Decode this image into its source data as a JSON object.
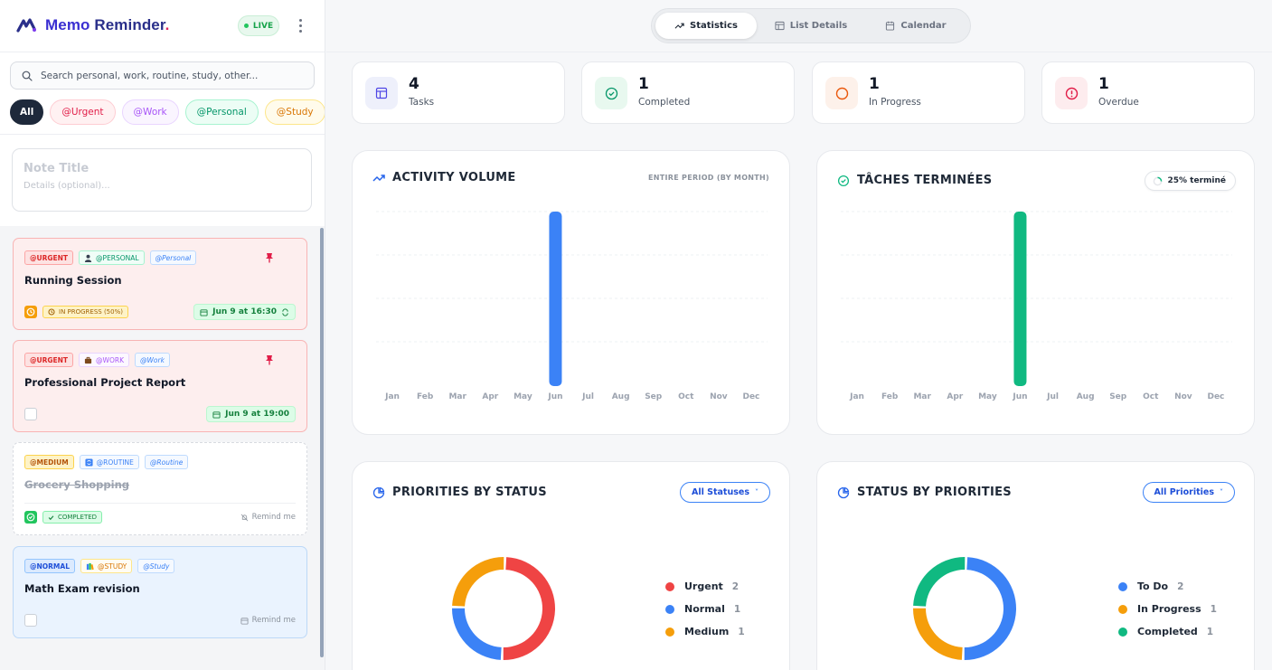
{
  "app": {
    "name_part1": "Memo",
    "name_part2": "Reminder",
    "dot": ".",
    "live": "LIVE"
  },
  "colors": {
    "brand": "#2a2f8a",
    "blue": "#3b82f6",
    "green": "#10b981",
    "red": "#ef4444",
    "orange": "#f59e0b"
  },
  "search": {
    "placeholder": "Search personal, work, routine, study, other..."
  },
  "filters": [
    "All",
    "@Urgent",
    "@Work",
    "@Personal",
    "@Study"
  ],
  "note_form": {
    "title_placeholder": "Note Title",
    "details_placeholder": "Details (optional)..."
  },
  "notes": [
    {
      "priority": "@URGENT",
      "category_icon": "person-icon",
      "category": "@PERSONAL",
      "context": "@Personal",
      "title": "Running Session",
      "pinned": true,
      "status": "IN PROGRESS (50%)",
      "date": "Jun 9 at 16:30",
      "repeat": true
    },
    {
      "priority": "@URGENT",
      "category_icon": "briefcase-icon",
      "category": "@WORK",
      "context": "@Work",
      "title": "Professional Project Report",
      "pinned": true,
      "date": "Jun 9 at 19:00"
    },
    {
      "priority": "@MEDIUM",
      "category_icon": "refresh-icon",
      "category": "@ROUTINE",
      "context": "@Routine",
      "title": "Grocery Shopping",
      "status": "COMPLETED",
      "remind": "Remind me"
    },
    {
      "priority": "@NORMAL",
      "category_icon": "books-icon",
      "category": "@STUDY",
      "context": "@Study",
      "title": "Math Exam revision",
      "remind": "Remind me"
    }
  ],
  "tabs": [
    "Statistics",
    "List Details",
    "Calendar"
  ],
  "stats": [
    {
      "value": "4",
      "label": "Tasks",
      "icon": "layout-icon"
    },
    {
      "value": "1",
      "label": "Completed",
      "icon": "check-circle-icon"
    },
    {
      "value": "1",
      "label": "In Progress",
      "icon": "circle-icon"
    },
    {
      "value": "1",
      "label": "Overdue",
      "icon": "alert-icon"
    }
  ],
  "panels": {
    "activity": {
      "title": "ACTIVITY VOLUME",
      "period": "ENTIRE PERIOD (BY MONTH)"
    },
    "completed": {
      "title": "TÂCHES TERMINÉES",
      "badge": "25% terminé"
    },
    "priorities": {
      "title": "PRIORITIES BY STATUS",
      "dropdown": "All Statuses"
    },
    "statuses": {
      "title": "STATUS BY PRIORITIES",
      "dropdown": "All Priorities"
    }
  },
  "chart_data": [
    {
      "type": "bar",
      "title": "ACTIVITY VOLUME",
      "categories": [
        "Jan",
        "Feb",
        "Mar",
        "Apr",
        "May",
        "Jun",
        "Jul",
        "Aug",
        "Sep",
        "Oct",
        "Nov",
        "Dec"
      ],
      "values": [
        0,
        0,
        0,
        0,
        0,
        4,
        0,
        0,
        0,
        0,
        0,
        0
      ],
      "color": "#3b82f6",
      "grid": true
    },
    {
      "type": "bar",
      "title": "TÂCHES TERMINÉES",
      "categories": [
        "Jan",
        "Feb",
        "Mar",
        "Apr",
        "May",
        "Jun",
        "Jul",
        "Aug",
        "Sep",
        "Oct",
        "Nov",
        "Dec"
      ],
      "values": [
        0,
        0,
        0,
        0,
        0,
        1,
        0,
        0,
        0,
        0,
        0,
        0
      ],
      "color": "#10b981",
      "grid": true
    },
    {
      "type": "pie",
      "title": "PRIORITIES BY STATUS",
      "labels": [
        "Urgent",
        "Normal",
        "Medium"
      ],
      "values": [
        2,
        1,
        1
      ],
      "colors": [
        "#ef4444",
        "#3b82f6",
        "#f59e0b"
      ]
    },
    {
      "type": "pie",
      "title": "STATUS BY PRIORITIES",
      "labels": [
        "To Do",
        "In Progress",
        "Completed"
      ],
      "values": [
        2,
        1,
        1
      ],
      "colors": [
        "#3b82f6",
        "#f59e0b",
        "#10b981"
      ]
    }
  ]
}
